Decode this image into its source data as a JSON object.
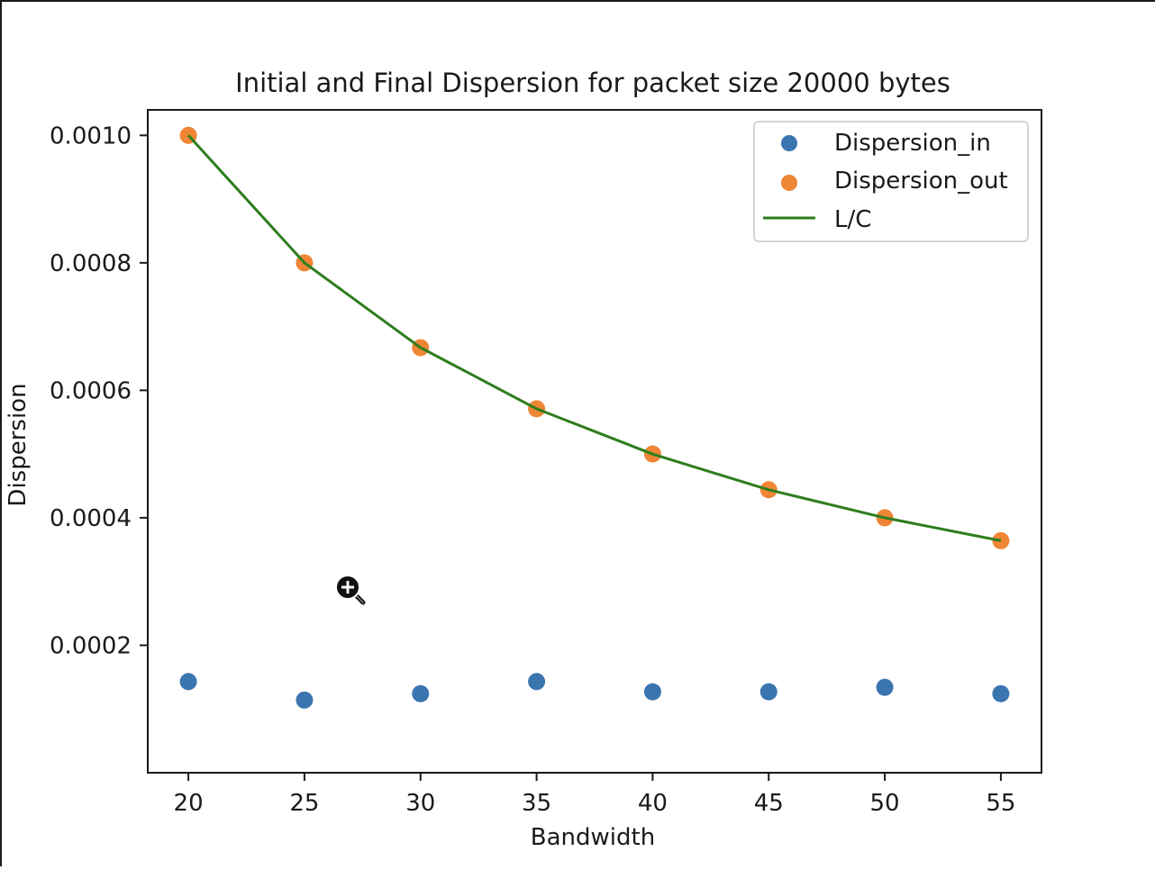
{
  "chart_data": {
    "type": "scatter",
    "title": "Initial and Final Dispersion for packet size 20000 bytes",
    "xlabel": "Bandwidth",
    "ylabel": "Dispersion",
    "x": [
      20,
      25,
      30,
      35,
      40,
      45,
      50,
      55
    ],
    "xticks": [
      20,
      25,
      30,
      35,
      40,
      45,
      50,
      55
    ],
    "xtick_labels": [
      "20",
      "25",
      "30",
      "35",
      "40",
      "45",
      "50",
      "55"
    ],
    "yticks": [
      0.0002,
      0.0004,
      0.0006,
      0.0008,
      0.001
    ],
    "ytick_labels": [
      "0.0002",
      "0.0004",
      "0.0006",
      "0.0008",
      "0.0010"
    ],
    "xlim": [
      18.25,
      56.75
    ],
    "ylim": [
      0.0,
      0.00104
    ],
    "grid": false,
    "legend_position": "top-right",
    "series": [
      {
        "name": "Dispersion_in",
        "kind": "scatter",
        "color": "#3a75b0",
        "values": [
          0.000143,
          0.000114,
          0.000124,
          0.000143,
          0.000127,
          0.000127,
          0.000134,
          0.000124
        ]
      },
      {
        "name": "Dispersion_out",
        "kind": "scatter",
        "color": "#ef8636",
        "values": [
          0.001,
          0.0008,
          0.000667,
          0.000571,
          0.0005,
          0.000444,
          0.0004,
          0.000364
        ]
      },
      {
        "name": "L/C",
        "kind": "line",
        "color": "#2e7d1e",
        "values": [
          0.001,
          0.0008,
          0.000667,
          0.000571,
          0.0005,
          0.000444,
          0.0004,
          0.000364
        ]
      }
    ]
  },
  "cursor": {
    "icon": "zoom-in-cursor-icon"
  }
}
